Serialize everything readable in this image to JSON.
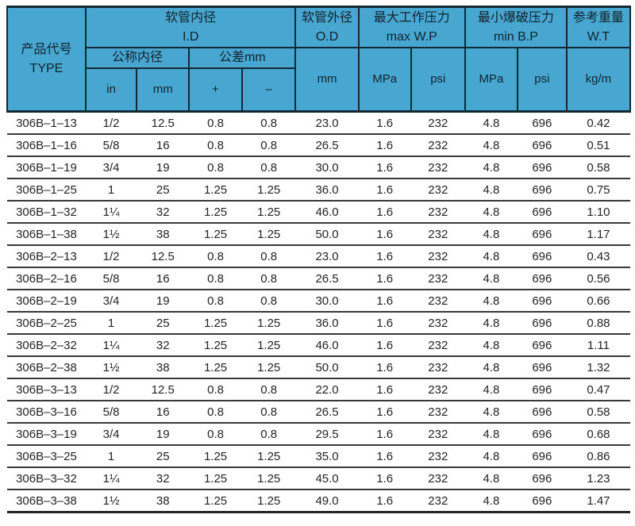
{
  "colors": {
    "header_bg": "#47a7d0",
    "header_line": "#142834",
    "header_text": "#13232e",
    "row_separator": "#383838",
    "body_text": "#242424",
    "page_bg": "#ffffff"
  },
  "table": {
    "header": {
      "type_label": "产品代号\nTYPE",
      "id_group": "软管内径\nI.D",
      "od_group": "软管外径\nO.D",
      "wp_group": "最大工作压力\nmax W.P",
      "bp_group": "最小爆破压力\nmin B.P",
      "wt_group": "参考重量\nW.T",
      "nominal_label": "公称内径",
      "tolerance_label": "公差mm",
      "in_label": "in",
      "mm_label": "mm",
      "plus_label": "+",
      "minus_label": "–",
      "od_unit": "mm",
      "wp_mpa_label": "MPa",
      "wp_psi_label": "psi",
      "bp_mpa_label": "MPa",
      "bp_psi_label": "psi",
      "wt_unit": "kg/m"
    },
    "columns": [
      "product-code",
      "id-in",
      "id-mm",
      "tolerance-plus",
      "tolerance-minus",
      "od-mm",
      "maxwp-mpa",
      "maxwp-psi",
      "minbp-mpa",
      "minbp-psi",
      "weight-kgm"
    ],
    "rows": [
      [
        "306B–1–13",
        "1/2",
        "12.5",
        "0.8",
        "0.8",
        "23.0",
        "1.6",
        "232",
        "4.8",
        "696",
        "0.42"
      ],
      [
        "306B–1–16",
        "5/8",
        "16",
        "0.8",
        "0.8",
        "26.5",
        "1.6",
        "232",
        "4.8",
        "696",
        "0.51"
      ],
      [
        "306B–1–19",
        "3/4",
        "19",
        "0.8",
        "0.8",
        "30.0",
        "1.6",
        "232",
        "4.8",
        "696",
        "0.58"
      ],
      [
        "306B–1–25",
        "1",
        "25",
        "1.25",
        "1.25",
        "36.0",
        "1.6",
        "232",
        "4.8",
        "696",
        "0.75"
      ],
      [
        "306B–1–32",
        "1¼",
        "32",
        "1.25",
        "1.25",
        "46.0",
        "1.6",
        "232",
        "4.8",
        "696",
        "1.10"
      ],
      [
        "306B–1–38",
        "1½",
        "38",
        "1.25",
        "1.25",
        "50.0",
        "1.6",
        "232",
        "4.8",
        "696",
        "1.17"
      ],
      [
        "306B–2–13",
        "1/2",
        "12.5",
        "0.8",
        "0.8",
        "23.0",
        "1.6",
        "232",
        "4.8",
        "696",
        "0.43"
      ],
      [
        "306B–2–16",
        "5/8",
        "16",
        "0.8",
        "0.8",
        "26.5",
        "1.6",
        "232",
        "4.8",
        "696",
        "0.56"
      ],
      [
        "306B–2–19",
        "3/4",
        "19",
        "0.8",
        "0.8",
        "30.0",
        "1.6",
        "232",
        "4.8",
        "696",
        "0.66"
      ],
      [
        "306B–2–25",
        "1",
        "25",
        "1.25",
        "1.25",
        "36.0",
        "1.6",
        "232",
        "4.8",
        "696",
        "0.88"
      ],
      [
        "306B–2–32",
        "1¼",
        "32",
        "1.25",
        "1.25",
        "46.0",
        "1.6",
        "232",
        "4.8",
        "696",
        "1.11"
      ],
      [
        "306B–2–38",
        "1½",
        "38",
        "1.25",
        "1.25",
        "50.0",
        "1.6",
        "232",
        "4.8",
        "696",
        "1.32"
      ],
      [
        "306B–3–13",
        "1/2",
        "12.5",
        "0.8",
        "0.8",
        "22.0",
        "1.6",
        "232",
        "4.8",
        "696",
        "0.47"
      ],
      [
        "306B–3–16",
        "5/8",
        "16",
        "0.8",
        "0.8",
        "26.5",
        "1.6",
        "232",
        "4.8",
        "696",
        "0.58"
      ],
      [
        "306B–3–19",
        "3/4",
        "19",
        "0.8",
        "0.8",
        "29.5",
        "1.6",
        "232",
        "4.8",
        "696",
        "0.68"
      ],
      [
        "306B–3–25",
        "1",
        "25",
        "1.25",
        "1.25",
        "35.0",
        "1.6",
        "232",
        "4.8",
        "696",
        "0.86"
      ],
      [
        "306B–3–32",
        "1¼",
        "32",
        "1.25",
        "1.25",
        "45.0",
        "1.6",
        "232",
        "4.8",
        "696",
        "1.23"
      ],
      [
        "306B–3–38",
        "1½",
        "38",
        "1.25",
        "1.25",
        "49.0",
        "1.6",
        "232",
        "4.8",
        "696",
        "1.47"
      ]
    ]
  }
}
